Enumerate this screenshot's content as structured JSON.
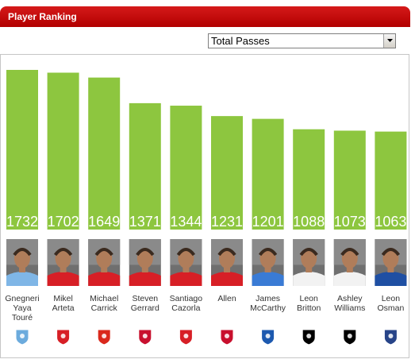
{
  "header": {
    "title": "Player Ranking"
  },
  "metric_select": {
    "selected": "Total Passes"
  },
  "chart_data": {
    "type": "bar",
    "categories": [
      "Gnegneri Yaya Touré",
      "Mikel Arteta",
      "Michael Carrick",
      "Steven Gerrard",
      "Santiago Cazorla",
      "Allen",
      "James McCarthy",
      "Leon Britton",
      "Ashley Williams",
      "Leon Osman"
    ],
    "values": [
      1732,
      1702,
      1649,
      1371,
      1344,
      1231,
      1201,
      1088,
      1073,
      1063
    ],
    "bar_color": "#8dc63f"
  },
  "players": [
    {
      "name_lines": [
        "Gnegneri",
        "Yaya",
        "Touré"
      ],
      "club": "Manchester City",
      "club_icon": "man-city-crest-icon",
      "kit": "#7fb6e6"
    },
    {
      "name_lines": [
        "Mikel",
        "Arteta"
      ],
      "club": "Arsenal",
      "club_icon": "arsenal-crest-icon",
      "kit": "#d71f26"
    },
    {
      "name_lines": [
        "Michael",
        "Carrick"
      ],
      "club": "Manchester United",
      "club_icon": "man-utd-crest-icon",
      "kit": "#d71f26"
    },
    {
      "name_lines": [
        "Steven",
        "Gerrard"
      ],
      "club": "Liverpool",
      "club_icon": "liverpool-crest-icon",
      "kit": "#d71f26"
    },
    {
      "name_lines": [
        "Santiago",
        "Cazorla"
      ],
      "club": "Arsenal",
      "club_icon": "arsenal-crest-icon",
      "kit": "#d71f26"
    },
    {
      "name_lines": [
        "Allen"
      ],
      "club": "Liverpool",
      "club_icon": "liverpool-crest-icon",
      "kit": "#d71f26"
    },
    {
      "name_lines": [
        "James",
        "McCarthy"
      ],
      "club": "Wigan Athletic",
      "club_icon": "wigan-crest-icon",
      "kit": "#3a7bd5"
    },
    {
      "name_lines": [
        "Leon",
        "Britton"
      ],
      "club": "Swansea City",
      "club_icon": "swansea-crest-icon",
      "kit": "#f2f2f2"
    },
    {
      "name_lines": [
        "Ashley",
        "Williams"
      ],
      "club": "Swansea City",
      "club_icon": "swansea-crest-icon",
      "kit": "#f2f2f2"
    },
    {
      "name_lines": [
        "Leon",
        "Osman"
      ],
      "club": "Everton",
      "club_icon": "everton-crest-icon",
      "kit": "#1f4fa3"
    }
  ],
  "crest_colors": {
    "man-city-crest-icon": "#6cabdd",
    "arsenal-crest-icon": "#d71f26",
    "man-utd-crest-icon": "#da291c",
    "liverpool-crest-icon": "#c8102e",
    "wigan-crest-icon": "#1d59af",
    "swansea-crest-icon": "#000000",
    "everton-crest-icon": "#274488"
  }
}
